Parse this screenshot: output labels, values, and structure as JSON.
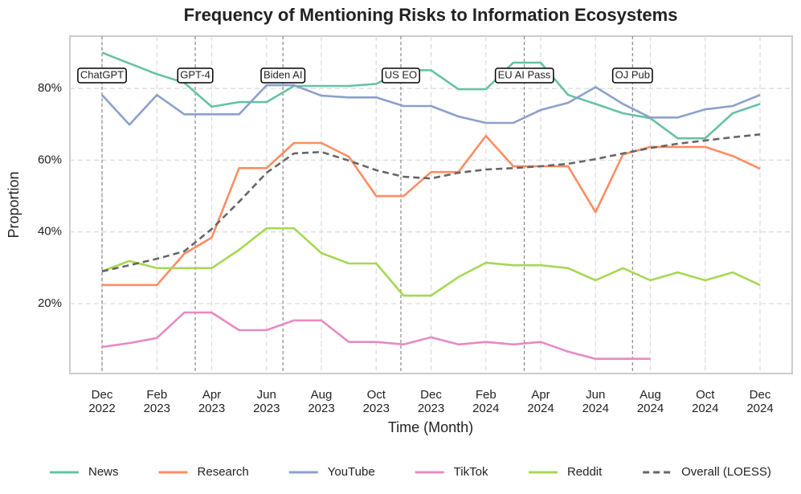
{
  "chart_data": {
    "type": "line",
    "title": "Frequency of Mentioning Risks to Information Ecosystems",
    "xlabel": "Time (Month)",
    "ylabel": "Proportion",
    "categories": [
      "Dec\n2022",
      null,
      "Feb\n2023",
      null,
      "Apr\n2023",
      null,
      "Jun\n2023",
      null,
      "Aug\n2023",
      null,
      "Oct\n2023",
      null,
      "Dec\n2023",
      null,
      "Feb\n2024",
      null,
      "Apr\n2024",
      null,
      "Jun\n2024",
      null,
      "Aug\n2024",
      null,
      "Oct\n2024",
      null,
      "Dec\n2024"
    ],
    "ylim": [
      0.5,
      94.6
    ],
    "yticks": [
      {
        "value": 20,
        "label": "20%"
      },
      {
        "value": 40,
        "label": "40%"
      },
      {
        "value": 60,
        "label": "60%"
      },
      {
        "value": 80,
        "label": "80%"
      }
    ],
    "grid": true,
    "legend": "bottom",
    "series": [
      {
        "name": "News",
        "color": "#66c2a5",
        "values": [
          90,
          87,
          84,
          81.6,
          74.9,
          76.2,
          76.2,
          80.7,
          80.7,
          80.7,
          81.3,
          85.1,
          85.1,
          79.8,
          79.8,
          87.2,
          87.2,
          78.2,
          75.7,
          73.1,
          71.7,
          66.1,
          66.1,
          73.1,
          75.7
        ]
      },
      {
        "name": "Research",
        "color": "#fc8d62",
        "values": [
          25.2,
          25.2,
          25.2,
          33.9,
          38.4,
          57.8,
          57.8,
          64.8,
          64.8,
          61,
          50,
          50,
          56.7,
          56.7,
          66.8,
          58.3,
          58.3,
          58.3,
          45.5,
          61.6,
          63.7,
          63.7,
          63.7,
          61.2,
          57.6
        ]
      },
      {
        "name": "YouTube",
        "color": "#8da0cb",
        "values": [
          78.2,
          69.9,
          78.2,
          72.8,
          72.8,
          72.8,
          80.9,
          80.9,
          78,
          77.5,
          77.5,
          75.1,
          75.1,
          72.2,
          70.4,
          70.4,
          74,
          76,
          80.4,
          75.7,
          71.9,
          71.9,
          74.2,
          75.1,
          78.2
        ]
      },
      {
        "name": "TikTok",
        "color": "#e78ac3",
        "values": [
          7.9,
          9,
          10.4,
          17.5,
          17.5,
          12.6,
          12.6,
          15.3,
          15.3,
          9.3,
          9.3,
          8.6,
          10.6,
          8.6,
          9.3,
          8.6,
          9.3,
          6.6,
          4.6,
          4.6,
          4.6,
          null,
          null,
          null,
          null
        ]
      },
      {
        "name": "Reddit",
        "color": "#a6d854",
        "values": [
          29,
          31.9,
          29.9,
          29.9,
          29.9,
          35,
          41,
          41,
          34.1,
          31.2,
          31.2,
          22.2,
          22.2,
          27.4,
          31.4,
          30.7,
          30.7,
          29.9,
          26.5,
          29.9,
          26.5,
          28.7,
          26.5,
          28.7,
          25.2
        ]
      },
      {
        "name": "Overall (LOESS)",
        "color": "#666666",
        "dashed": true,
        "values": [
          29,
          30.7,
          32.5,
          34.6,
          40.8,
          48.4,
          56.5,
          61.9,
          62.3,
          59.9,
          57.2,
          55.4,
          54.9,
          56.5,
          57.4,
          57.8,
          58.3,
          59,
          60.3,
          61.9,
          63.4,
          64.6,
          65.5,
          66.4,
          67.2
        ]
      }
    ],
    "annotations": [
      {
        "label": "ChatGPT",
        "x": 0
      },
      {
        "label": "GPT-4",
        "x": 3.4
      },
      {
        "label": "Biden AI",
        "x": 6.6
      },
      {
        "label": "US EO",
        "x": 10.9
      },
      {
        "label": "EU AI Pass",
        "x": 15.4
      },
      {
        "label": "OJ Pub",
        "x": 19.35
      }
    ]
  }
}
